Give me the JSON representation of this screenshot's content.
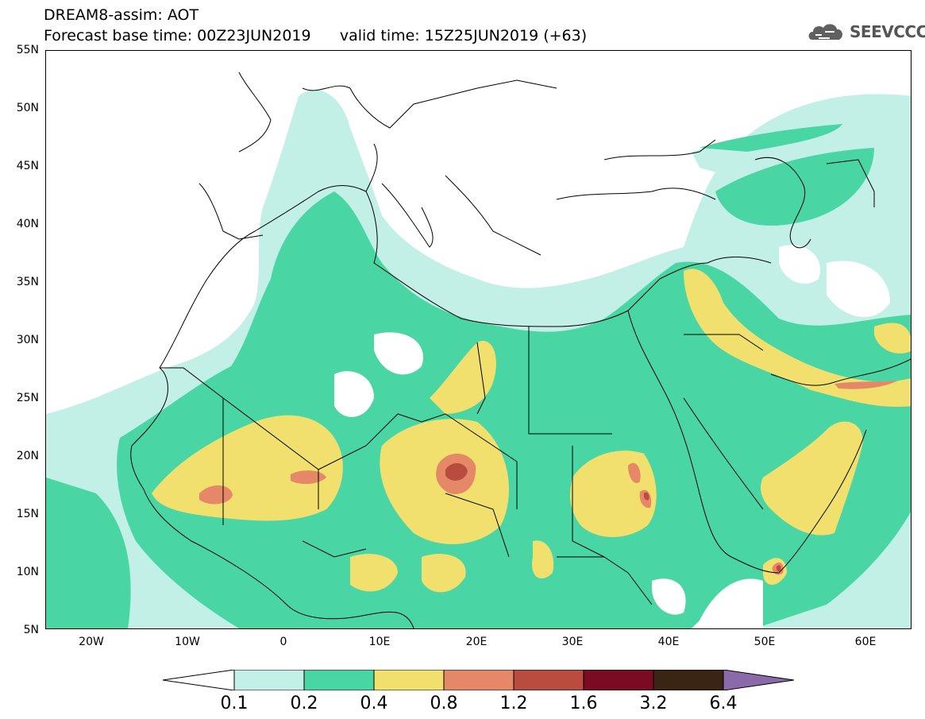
{
  "header": {
    "title": "DREAM8-assim: AOT",
    "subtitle": "Forecast base time: 00Z23JUN2019      valid time: 15Z25JUN2019 (+63)"
  },
  "logo": {
    "text": "SEEVCCC",
    "icon": "cloud-icon"
  },
  "map": {
    "lat_labels": [
      "55N",
      "50N",
      "45N",
      "40N",
      "35N",
      "30N",
      "25N",
      "20N",
      "15N",
      "10N",
      "5N"
    ],
    "lon_labels": [
      "20W",
      "10W",
      "0",
      "10E",
      "20E",
      "30E",
      "40E",
      "50E",
      "60E"
    ],
    "lat_range": [
      5,
      55
    ],
    "lon_range": [
      -25,
      65
    ]
  },
  "colorbar": {
    "labels": [
      "0.1",
      "0.2",
      "0.4",
      "0.8",
      "1.2",
      "1.6",
      "3.2",
      "6.4"
    ],
    "colors": [
      "#ffffff",
      "#c2efe6",
      "#49d6a4",
      "#f2e06e",
      "#e58867",
      "#b84c3e",
      "#7b0a23",
      "#3a2413",
      "#8a6aa8"
    ]
  }
}
